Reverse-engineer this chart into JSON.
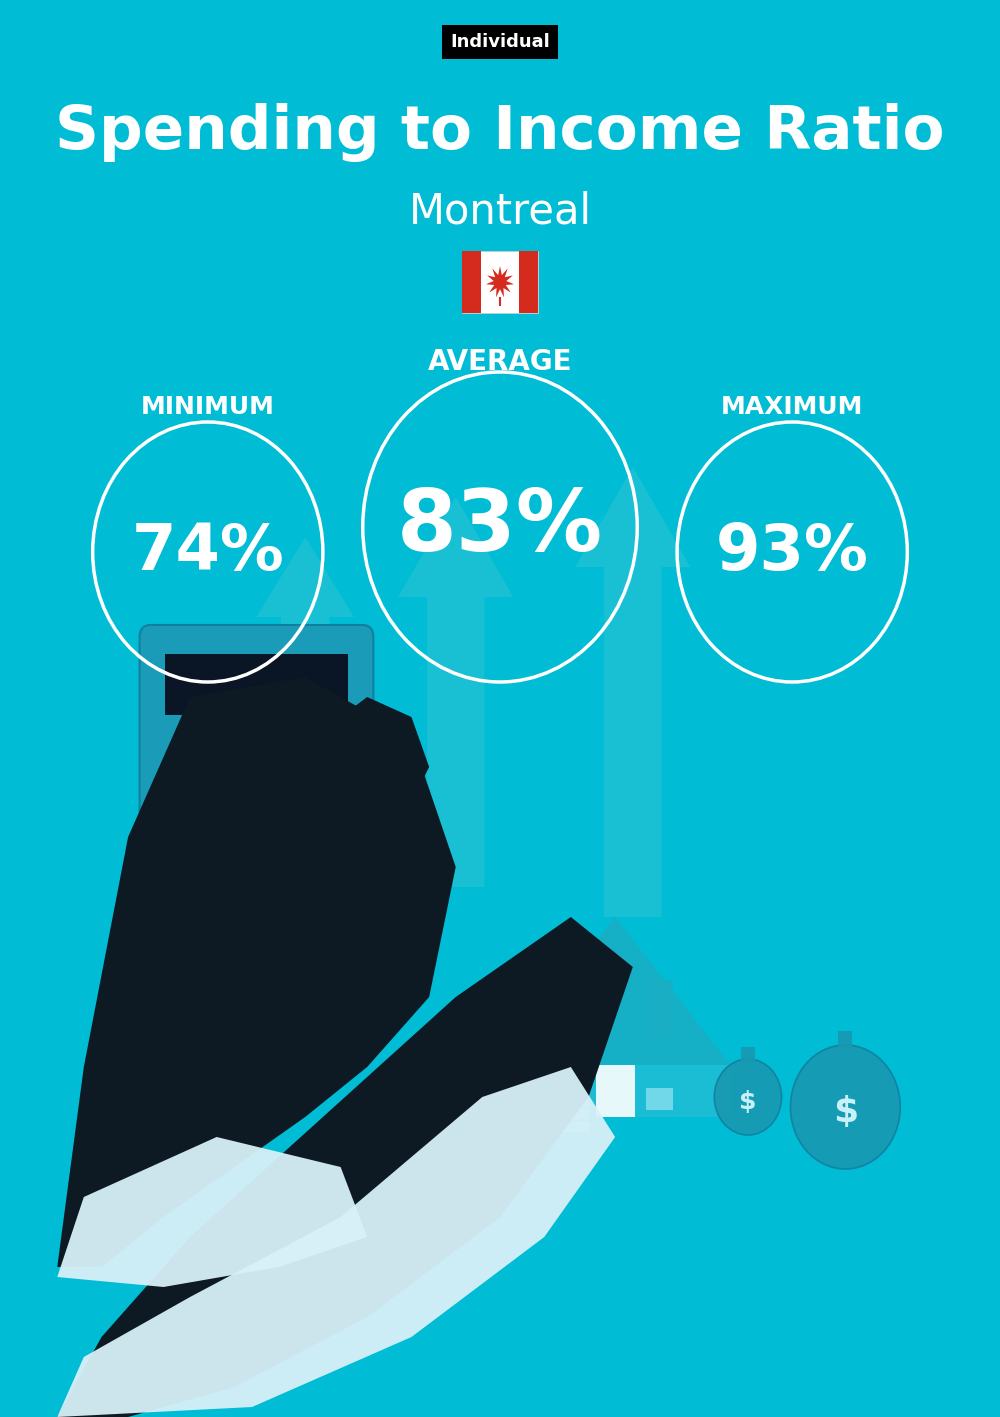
{
  "bg_color": "#00BCD4",
  "title": "Spending to Income Ratio",
  "subtitle": "Montreal",
  "tag_label": "Individual",
  "tag_bg": "#000000",
  "tag_text_color": "#ffffff",
  "title_color": "#ffffff",
  "subtitle_color": "#ffffff",
  "label_color": "#ffffff",
  "min_label": "MINIMUM",
  "avg_label": "AVERAGE",
  "max_label": "MAXIMUM",
  "min_value": "74%",
  "avg_value": "83%",
  "max_value": "93%",
  "circle_linewidth": 2.5,
  "fig_width": 10.0,
  "fig_height": 14.17,
  "dpi": 100
}
